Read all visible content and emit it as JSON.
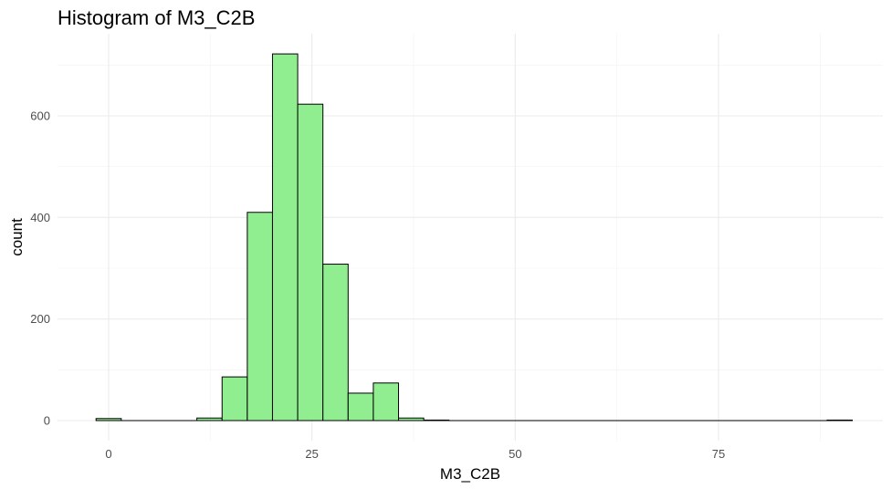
{
  "chart_data": {
    "type": "bar",
    "subtype": "histogram",
    "title": "Histogram of M3_C2B",
    "xlabel": "M3_C2B",
    "ylabel": "count",
    "xlim": [
      -3,
      90
    ],
    "ylim": [
      0,
      750
    ],
    "x_ticks": [
      0,
      25,
      50,
      75
    ],
    "y_ticks": [
      0,
      200,
      400,
      600
    ],
    "x_tick_labels": [
      "0",
      "25",
      "50",
      "75"
    ],
    "y_tick_labels": [
      "0",
      "200",
      "400",
      "600"
    ],
    "grid": true,
    "legend": "none",
    "bin_width": 3.1,
    "bin_start": -1.55,
    "values": [
      4,
      0,
      0,
      0,
      5,
      86,
      410,
      722,
      623,
      308,
      54,
      74,
      5,
      1,
      0,
      0,
      0,
      0,
      0,
      0,
      0,
      0,
      0,
      0,
      0,
      0,
      0,
      0,
      0,
      1
    ],
    "colors": {
      "fill": "#90ee90",
      "outline": "#000000"
    }
  }
}
